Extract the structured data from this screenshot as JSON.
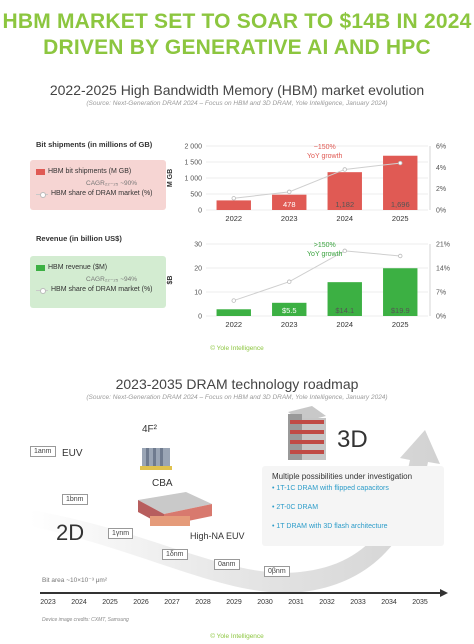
{
  "headline": {
    "line1": "HBM MARKET SET TO SOAR TO $14B IN 2024",
    "line2": "DRIVEN BY GENERATIVE AI AND HPC"
  },
  "market_section": {
    "title": "2022-2025 High Bandwidth Memory (HBM) market evolution",
    "source": "(Source: Next-Generation DRAM 2024 – Focus on HBM and 3D DRAM, Yole Intelligence, January 2024)",
    "credit": "© Yole Intelligence"
  },
  "roadmap_section": {
    "title": "2023-2035 DRAM technology roadmap",
    "source": "(Source: Next-Generation DRAM 2024 – Focus on HBM and 3D DRAM, Yole Intelligence, January 2024)",
    "credit": "© Yole Intelligence",
    "device_credit": "Device image credits: CXMT, Samsung",
    "bit_area_label": "Bit area ~10×10⁻³ μm²",
    "labels": {
      "euv": "EUV",
      "high_na_euv": "High-NA EUV",
      "two_d": "2D",
      "three_d": "3D",
      "f4": "4F²",
      "cba": "CBA"
    },
    "nodes": [
      "1anm",
      "1bnm",
      "1γnm",
      "1δnm",
      "0anm",
      "0βnm"
    ],
    "timeline_years": [
      "2023",
      "2024",
      "2025",
      "2026",
      "2027",
      "2028",
      "2029",
      "2030",
      "2031",
      "2032",
      "2033",
      "2034",
      "2035"
    ],
    "possibilities": {
      "title": "Multiple possibilities under investigation",
      "items": [
        "1T-1C DRAM with flipped capacitors",
        "2T-0C DRAM",
        "1T DRAM with 3D flash architecture"
      ]
    }
  },
  "colors": {
    "headline_green": "#8cc63f",
    "shipments_bar": "#e05a54",
    "revenue_bar": "#3cb043",
    "legend_red_bg": "#f6d5d3",
    "legend_green_bg": "#d3ecd1",
    "share_line": "#cfcfcf",
    "accent_red_text": "#e05a54",
    "accent_green_text": "#3aa33f",
    "roadmap_blue": "#2c9cc9",
    "timeline": "#333333"
  },
  "chart_data": [
    {
      "type": "bar",
      "panel_label": "Bit shipments (in millions of GB)",
      "categories": [
        "2022",
        "2023",
        "2024",
        "2025"
      ],
      "ylabel": "M GB",
      "ylim": [
        0,
        2000
      ],
      "y_ticks": [
        "0",
        "500",
        "1 000",
        "1 500",
        "2 000"
      ],
      "y2_ticks": [
        "0%",
        "2%",
        "4%",
        "6%"
      ],
      "y2lim": [
        0,
        6
      ],
      "series": [
        {
          "name": "HBM bit shipments (M GB)",
          "values": [
            300,
            478,
            1182,
            1696
          ],
          "value_labels": [
            "",
            "478",
            "1,182",
            "1,696"
          ],
          "axis": "left"
        },
        {
          "name": "HBM share of DRAM market (%)",
          "values": [
            1.1,
            1.7,
            3.8,
            4.4
          ],
          "axis": "right"
        }
      ],
      "legend": {
        "bar_label": "HBM bit shipments (M GB)",
        "cagr": "CAGR₂₂₋₂₅ ~90%",
        "line_label": "HBM share of DRAM market (%)"
      },
      "annotation": "~150%\nYoY growth",
      "grid": true
    },
    {
      "type": "bar",
      "panel_label": "Revenue (in billion US$)",
      "categories": [
        "2022",
        "2023",
        "2024",
        "2025"
      ],
      "ylabel": "$B",
      "ylim": [
        0,
        30
      ],
      "y_ticks": [
        "0",
        "10",
        "20",
        "30"
      ],
      "y2_ticks": [
        "0%",
        "7%",
        "14%",
        "21%"
      ],
      "y2lim": [
        0,
        21
      ],
      "series": [
        {
          "name": "HBM revenue ($M)",
          "values": [
            2.8,
            5.5,
            14.1,
            19.9
          ],
          "value_labels": [
            "",
            "$5.5",
            "$14.1",
            "$19.9"
          ],
          "axis": "left"
        },
        {
          "name": "HBM share of DRAM market (%)",
          "values": [
            4.5,
            10,
            19,
            17.5
          ],
          "axis": "right"
        }
      ],
      "legend": {
        "bar_label": "HBM revenue ($M)",
        "cagr": "CAGR₂₂₋₂₅ ~94%",
        "line_label": "HBM share of DRAM market (%)"
      },
      "annotation": ">150%\nYoY growth",
      "grid": true
    }
  ]
}
